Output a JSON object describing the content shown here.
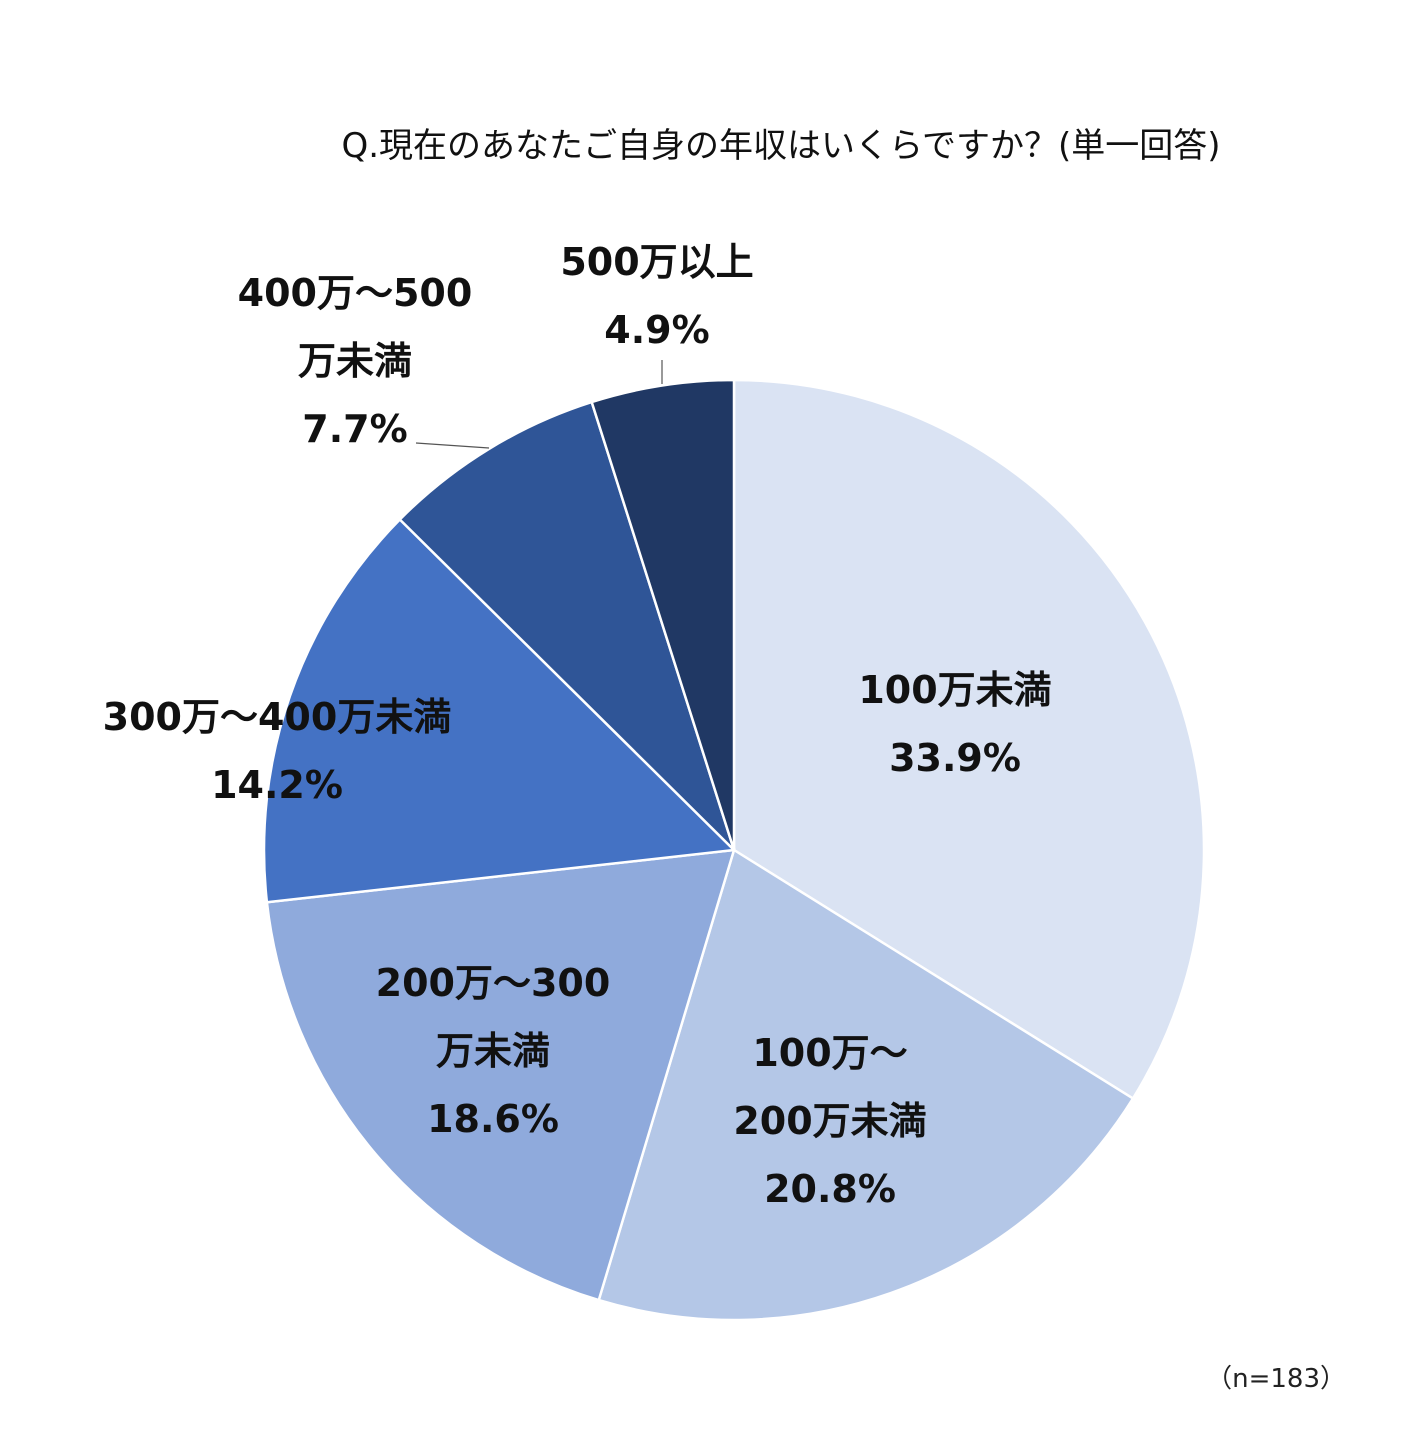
{
  "chart_data": {
    "type": "pie",
    "title": "Q.現在のあなたご自身の年収はいくらですか？(単一回答)",
    "note": "（n=183）",
    "slices": [
      {
        "lines": [
          "100万未満"
        ],
        "value": "33.9%",
        "pct": 33.9,
        "color": "#dae3f3"
      },
      {
        "lines": [
          "100万～",
          "200万未満"
        ],
        "value": "20.8%",
        "pct": 20.8,
        "color": "#b4c7e7"
      },
      {
        "lines": [
          "200万～300",
          "万未満"
        ],
        "value": "18.6%",
        "pct": 18.6,
        "color": "#8faadc"
      },
      {
        "lines": [
          "300万～400万未満"
        ],
        "value": "14.2%",
        "pct": 14.2,
        "color": "#4472c4"
      },
      {
        "lines": [
          "400万～500",
          "万未満"
        ],
        "value": "7.7%",
        "pct": 7.7,
        "color": "#2f5597"
      },
      {
        "lines": [
          "500万以上"
        ],
        "value": "4.9%",
        "pct": 4.9,
        "color": "#203864"
      }
    ]
  }
}
